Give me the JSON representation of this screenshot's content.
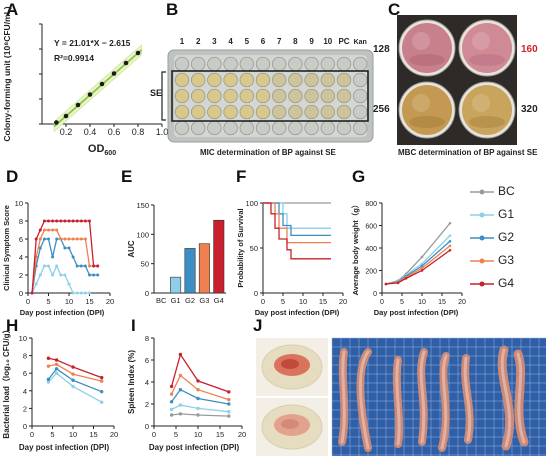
{
  "panel_labels": [
    "A",
    "B",
    "C",
    "D",
    "E",
    "F",
    "G",
    "H",
    "I",
    "J"
  ],
  "colors": {
    "BC": "#9a9a9a",
    "G1": "#8ecfe8",
    "G2": "#3c8fc4",
    "G3": "#f08050",
    "G4": "#c8202c",
    "lineA": "#8bc34a",
    "dotA": "#1a1a1a"
  },
  "panelA": {
    "equation": "Y = 21.01*X − 2.615",
    "r2": "R²=0.9914",
    "xlabel": "OD600",
    "ylabel": "Colony-forming unit (10⁸CFU/mL)",
    "xticks": [
      "0.2",
      "0.4",
      "0.6",
      "0.8",
      "1.0"
    ],
    "yticks": [
      "0",
      "5",
      "10",
      "15",
      "20"
    ]
  },
  "panelB": {
    "columns": [
      "1",
      "2",
      "3",
      "4",
      "5",
      "6",
      "7",
      "8",
      "9",
      "10",
      "PC",
      "Kan"
    ],
    "row_label": "SE",
    "caption": "MIC determination of BP against SE"
  },
  "panelC": {
    "labels": [
      "128",
      "160",
      "256",
      "320"
    ],
    "caption": "MBC determination of BP against SE"
  },
  "legend": [
    {
      "key": "BC",
      "label": "BC"
    },
    {
      "key": "G1",
      "label": "G1"
    },
    {
      "key": "G2",
      "label": "G2"
    },
    {
      "key": "G3",
      "label": "G3"
    },
    {
      "key": "G4",
      "label": "G4"
    }
  ],
  "chart_data": [
    {
      "panel": "A",
      "type": "scatter",
      "xlabel": "OD600",
      "ylabel": "Colony-forming unit (10⁸CFU/mL)",
      "xlim": [
        0,
        1.0
      ],
      "ylim": [
        0,
        20
      ],
      "x": [
        0.12,
        0.2,
        0.3,
        0.4,
        0.5,
        0.6,
        0.7,
        0.8
      ],
      "y": [
        0.3,
        1.6,
        3.8,
        5.9,
        8.0,
        10.1,
        12.2,
        14.2
      ],
      "fit": {
        "slope": 21.01,
        "intercept": -2.615
      }
    },
    {
      "panel": "D",
      "type": "line",
      "ylabel": "Clinical Symptom Score",
      "xlabel": "Day post   infection (DPI)",
      "xlim": [
        0,
        20
      ],
      "ylim": [
        0,
        10
      ],
      "xticks": [
        "0",
        "5",
        "10",
        "15",
        "20"
      ],
      "yticks": [
        "0",
        "2",
        "4",
        "6",
        "8",
        "10"
      ],
      "x": [
        1,
        2,
        3,
        4,
        5,
        6,
        7,
        8,
        9,
        10,
        11,
        12,
        13,
        14,
        15,
        16,
        17
      ],
      "series": [
        {
          "key": "G1",
          "values": [
            0,
            1,
            2,
            3,
            3,
            2,
            3,
            2,
            2,
            1,
            0,
            0,
            0,
            0,
            0,
            null,
            null
          ]
        },
        {
          "key": "G2",
          "values": [
            0,
            3,
            5,
            6,
            6,
            4,
            6,
            6,
            5,
            5,
            4,
            3,
            3,
            3,
            2,
            2,
            2
          ]
        },
        {
          "key": "G3",
          "values": [
            0,
            4,
            6,
            7,
            7,
            7,
            7,
            6,
            6,
            6,
            6,
            6,
            6,
            6,
            3,
            3,
            3
          ]
        },
        {
          "key": "G4",
          "values": [
            0,
            6,
            7,
            8,
            8,
            8,
            8,
            8,
            8,
            8,
            8,
            8,
            8,
            8,
            8,
            3,
            3
          ]
        }
      ]
    },
    {
      "panel": "E",
      "type": "bar",
      "ylabel": "AUC",
      "ylim": [
        0,
        150
      ],
      "yticks": [
        "0",
        "50",
        "100",
        "150"
      ],
      "categories": [
        "BC",
        "G1",
        "G2",
        "G3",
        "G4"
      ],
      "values": [
        0,
        27,
        76,
        84,
        124
      ]
    },
    {
      "panel": "F",
      "type": "line",
      "ylabel": "Probability of Survival",
      "xlabel": "Day post   infection (DPI)",
      "xlim": [
        0,
        20
      ],
      "ylim": [
        0,
        100
      ],
      "xticks": [
        "0",
        "5",
        "10",
        "15",
        "20"
      ],
      "yticks": [
        "0",
        "50",
        "100"
      ],
      "series": [
        {
          "key": "BC",
          "steps": [
            [
              0,
              100
            ],
            [
              17,
              100
            ]
          ]
        },
        {
          "key": "G1",
          "steps": [
            [
              0,
              100
            ],
            [
              5,
              88
            ],
            [
              6,
              72
            ],
            [
              17,
              72
            ]
          ]
        },
        {
          "key": "G2",
          "steps": [
            [
              0,
              100
            ],
            [
              4,
              88
            ],
            [
              5,
              75
            ],
            [
              7,
              64
            ],
            [
              17,
              64
            ]
          ]
        },
        {
          "key": "G3",
          "steps": [
            [
              0,
              100
            ],
            [
              3,
              88
            ],
            [
              4,
              72
            ],
            [
              6,
              56
            ],
            [
              17,
              56
            ]
          ]
        },
        {
          "key": "G4",
          "steps": [
            [
              0,
              100
            ],
            [
              2,
              88
            ],
            [
              3,
              72
            ],
            [
              4,
              60
            ],
            [
              6,
              48
            ],
            [
              7,
              38
            ],
            [
              17,
              38
            ]
          ]
        }
      ]
    },
    {
      "panel": "G",
      "type": "line",
      "ylabel": "Average body weight（g）",
      "xlabel": "Day post   infection (DPI)",
      "xlim": [
        0,
        20
      ],
      "ylim": [
        0,
        800
      ],
      "xticks": [
        "0",
        "5",
        "10",
        "15",
        "20"
      ],
      "yticks": [
        "0",
        "200",
        "400",
        "600",
        "800"
      ],
      "x": [
        1,
        4,
        6,
        10,
        17
      ],
      "series": [
        {
          "key": "BC",
          "values": [
            80,
            110,
            170,
            320,
            620
          ]
        },
        {
          "key": "G1",
          "values": [
            80,
            105,
            160,
            260,
            510
          ]
        },
        {
          "key": "G2",
          "values": [
            80,
            100,
            150,
            240,
            460
          ]
        },
        {
          "key": "G3",
          "values": [
            80,
            95,
            140,
            220,
            420
          ]
        },
        {
          "key": "G4",
          "values": [
            80,
            90,
            130,
            200,
            380
          ]
        }
      ]
    },
    {
      "panel": "H",
      "type": "line",
      "ylabel": "Bacterial load（log₁₀ CFU/g）",
      "xlabel": "Day post infection (DPI)",
      "xlim": [
        0,
        20
      ],
      "ylim": [
        0,
        10
      ],
      "xticks": [
        "0",
        "5",
        "10",
        "15",
        "20"
      ],
      "yticks": [
        "0",
        "2",
        "4",
        "6",
        "8",
        "10"
      ],
      "x": [
        4,
        6,
        10,
        17
      ],
      "series": [
        {
          "key": "G1",
          "values": [
            5.0,
            6.0,
            4.5,
            2.7
          ]
        },
        {
          "key": "G2",
          "values": [
            5.3,
            6.5,
            5.2,
            3.9
          ]
        },
        {
          "key": "G3",
          "values": [
            6.8,
            7.0,
            5.9,
            5.1
          ]
        },
        {
          "key": "G4",
          "values": [
            7.7,
            7.5,
            6.7,
            5.5
          ]
        }
      ]
    },
    {
      "panel": "I",
      "type": "line",
      "ylabel": "Spleen Index (%)",
      "xlabel": "Day post infection (DPI)",
      "xlim": [
        0,
        20
      ],
      "ylim": [
        0,
        8
      ],
      "xticks": [
        "0",
        "5",
        "10",
        "15",
        "20"
      ],
      "yticks": [
        "0",
        "2",
        "4",
        "6",
        "8"
      ],
      "x": [
        4,
        6,
        10,
        17
      ],
      "series": [
        {
          "key": "BC",
          "values": [
            1.0,
            1.1,
            1.0,
            0.9
          ]
        },
        {
          "key": "G1",
          "values": [
            1.5,
            1.9,
            1.6,
            1.3
          ]
        },
        {
          "key": "G2",
          "values": [
            2.2,
            3.3,
            2.5,
            2.0
          ]
        },
        {
          "key": "G3",
          "values": [
            2.9,
            4.6,
            3.3,
            2.4
          ]
        },
        {
          "key": "G4",
          "values": [
            3.6,
            6.5,
            4.1,
            3.1
          ]
        }
      ]
    }
  ]
}
